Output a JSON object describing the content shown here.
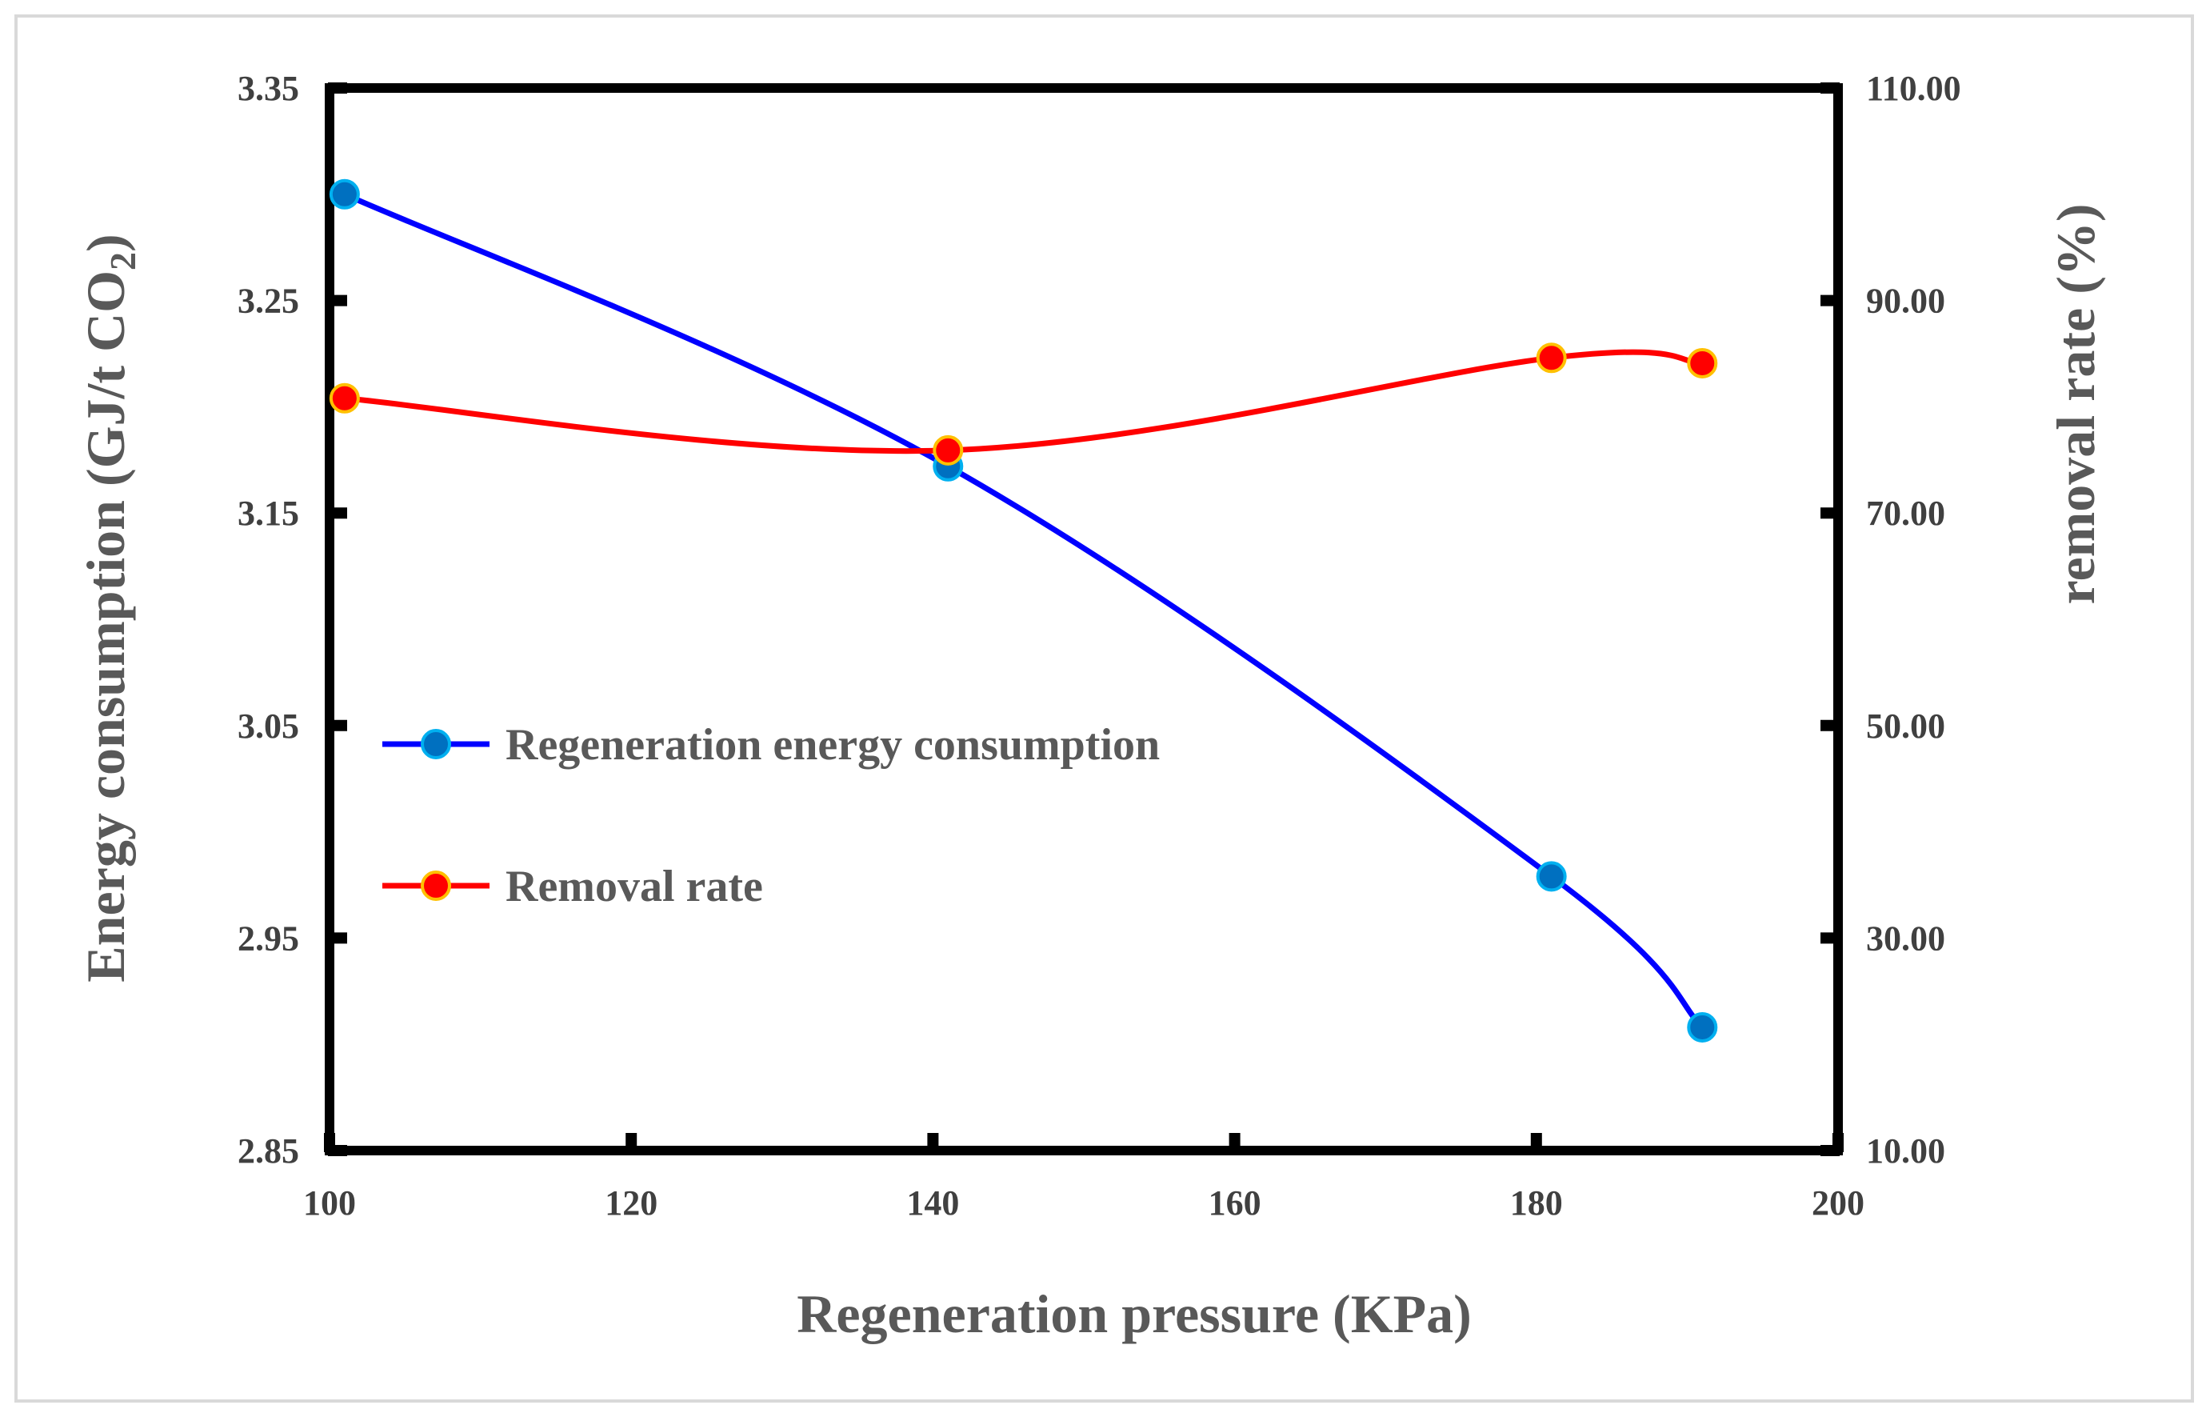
{
  "chart_data": {
    "type": "line",
    "x": [
      101,
      141,
      181,
      191
    ],
    "series": [
      {
        "name": "Regeneration energy consumption",
        "axis": "left",
        "values": [
          3.3,
          3.172,
          2.979,
          2.908
        ],
        "color": "#0000ff",
        "marker_color": "#0070c0",
        "smooth": true
      },
      {
        "name": "Removal rate",
        "axis": "right",
        "values": [
          80.8,
          75.9,
          84.6,
          84.1
        ],
        "color": "#ff0000",
        "marker_color": "#ff0000",
        "smooth": true
      }
    ],
    "xlabel": "Regeneration pressure (KPa)",
    "xlim": [
      100,
      200
    ],
    "xticks": [
      "100",
      "120",
      "140",
      "160",
      "180",
      "200"
    ],
    "ylabel_left": {
      "prefix": "Energy consumption (GJ/t CO",
      "subscript": "2",
      "suffix": ")"
    },
    "ylim_left": [
      2.85,
      3.35
    ],
    "yticks_left": [
      "2.85",
      "2.95",
      "3.05",
      "3.15",
      "3.25",
      "3.35"
    ],
    "ylabel_right": "removal rate (%)",
    "ylim_right": [
      10,
      110
    ],
    "yticks_right": [
      "10.00",
      "30.00",
      "50.00",
      "70.00",
      "90.00",
      "110.00"
    ],
    "legend_position": "center-left",
    "grid": false
  }
}
